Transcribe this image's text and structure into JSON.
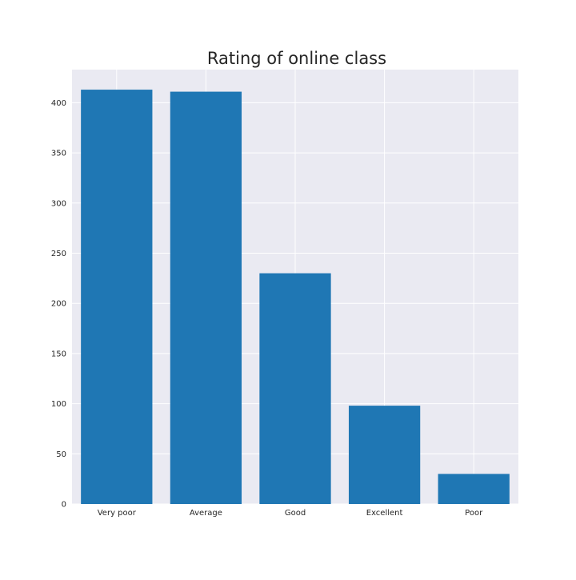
{
  "chart_data": {
    "type": "bar",
    "title": "Rating of online class",
    "xlabel": "",
    "ylabel": "",
    "categories": [
      "Very poor",
      "Average",
      "Good",
      "Excellent",
      "Poor"
    ],
    "values": [
      413,
      411,
      230,
      98,
      30
    ],
    "ylim": [
      0,
      433
    ],
    "yticks": [
      0,
      50,
      100,
      150,
      200,
      250,
      300,
      350,
      400
    ],
    "grid": true,
    "legend": "none",
    "colors": {
      "bar": "#1f77b4",
      "plot_background": "#eaeaf2",
      "grid": "#ffffff",
      "text": "#262626"
    }
  }
}
